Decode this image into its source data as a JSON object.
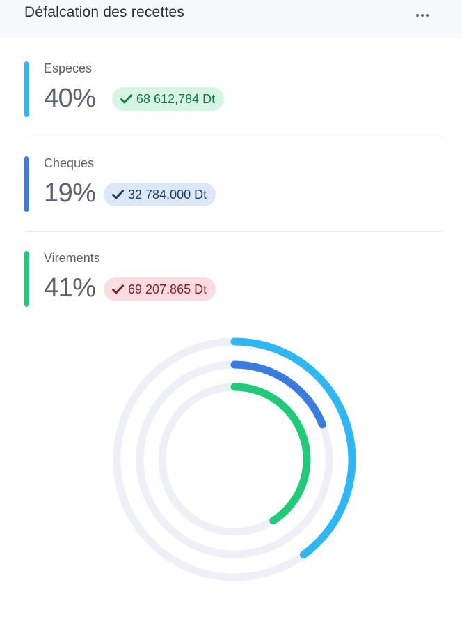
{
  "header": {
    "title": "Défalcation des recettes",
    "menu_icon": "more-horizontal-icon"
  },
  "colors": {
    "especes": "#2fb6f4",
    "cheques": "#3a7be0",
    "virements": "#1fcb79",
    "track": "#edf1f7"
  },
  "items": [
    {
      "label": "Especes",
      "percent": "40%",
      "amount": "68 612,784 Dt",
      "icon": "check-icon",
      "bar_color": "#2fb6f4",
      "badge_bg": "#d6f5e3",
      "badge_fg": "#137a43"
    },
    {
      "label": "Cheques",
      "percent": "19%",
      "amount": "32 784,000 Dt",
      "icon": "check-icon",
      "bar_color": "#3a7be0",
      "badge_bg": "#dce8f8",
      "badge_fg": "#1f3e63"
    },
    {
      "label": "Virements",
      "percent": "41%",
      "amount": "69 207,865 Dt",
      "icon": "check-icon",
      "bar_color": "#1fcb79",
      "badge_bg": "#fbdde0",
      "badge_fg": "#8a1e2e"
    }
  ],
  "chart_data": {
    "type": "radial-bar",
    "categories": [
      "Especes",
      "Cheques",
      "Virements"
    ],
    "values": [
      40,
      19,
      41
    ],
    "unit": "%",
    "ylim": [
      0,
      100
    ],
    "amounts": [
      "68 612,784 Dt",
      "32 784,000 Dt",
      "69 207,865 Dt"
    ]
  }
}
